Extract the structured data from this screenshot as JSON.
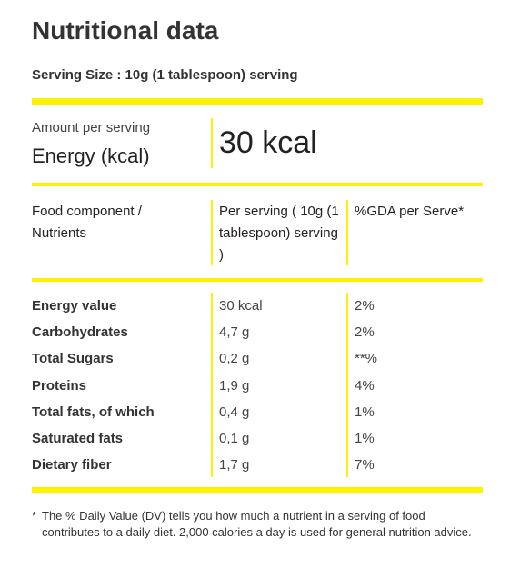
{
  "title": "Nutritional data",
  "serving_size": "Serving Size : 10g (1 tablespoon) serving",
  "energy": {
    "caption": "Amount per serving",
    "label": "Energy (kcal)",
    "value": "30 kcal"
  },
  "table": {
    "header": [
      "Food component / Nutrients",
      "Per serving ( 10g (1 tablespoon) serving )",
      "%GDA per Serve*"
    ],
    "rows": [
      [
        "Energy value",
        "30 kcal",
        "2%"
      ],
      [
        "Carbohydrates",
        "4,7 g",
        "2%"
      ],
      [
        "Total Sugars",
        "0,2 g",
        "**%"
      ],
      [
        "Proteins",
        "1,9 g",
        "4%"
      ],
      [
        "Total fats, of which",
        "0,4 g",
        "1%"
      ],
      [
        "Saturated fats",
        "0,1 g",
        "1%"
      ],
      [
        "Dietary fiber",
        "1,7 g",
        "7%"
      ]
    ]
  },
  "footnote": "The % Daily Value (DV) tells you how much a nutrient in a serving of food contributes to a daily diet. 2,000 calories a day is used for general nutrition advice."
}
